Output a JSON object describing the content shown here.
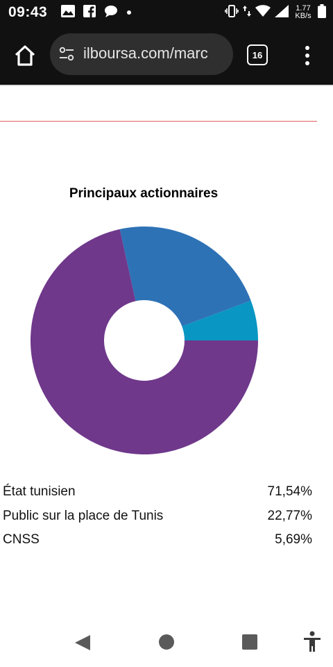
{
  "status_bar": {
    "time": "09:43",
    "net_speed_value": "1.77",
    "net_speed_unit": "KB/s",
    "left_icons": [
      "image-icon",
      "facebook-icon",
      "chat-bubble-icon",
      "dot-icon"
    ],
    "right_icons": [
      "vibrate-icon",
      "data-arrows-icon",
      "wifi-icon",
      "signal-icon",
      "battery-icon"
    ]
  },
  "browser": {
    "url": "ilboursa.com/marc",
    "tab_count": "16"
  },
  "chart": {
    "title": "Principaux actionnaires"
  },
  "chart_data": {
    "type": "pie",
    "title": "Principaux actionnaires",
    "donut": true,
    "series": [
      {
        "name": "État tunisien",
        "value": 71.54,
        "color": "#6f388b"
      },
      {
        "name": "Public sur la place de Tunis",
        "value": 22.77,
        "color": "#2e72b6"
      },
      {
        "name": "CNSS",
        "value": 5.69,
        "color": "#0a96c2"
      }
    ]
  },
  "legend": [
    {
      "name": "État tunisien",
      "pct": "71,54%"
    },
    {
      "name": "Public sur la place de Tunis",
      "pct": "22,77%"
    },
    {
      "name": "CNSS",
      "pct": "5,69%"
    }
  ],
  "nav_bar": {
    "icons": [
      "back-icon",
      "home-circle-icon",
      "recents-icon",
      "accessibility-icon"
    ]
  }
}
